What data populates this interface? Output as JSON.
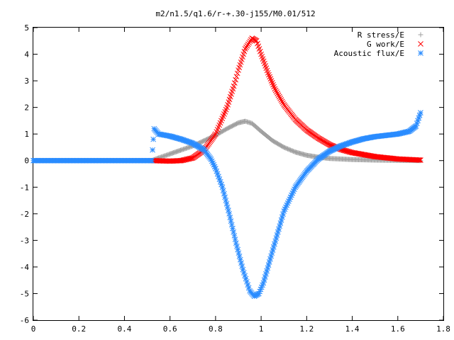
{
  "chart_data": {
    "type": "scatter",
    "title": "m2/n1.5/q1.6/r-+.30-j155/M0.01/512",
    "xlabel": "",
    "ylabel": "",
    "xlim": [
      0,
      1.8
    ],
    "ylim": [
      -6,
      5
    ],
    "x_ticks": [
      "0",
      "0.2",
      "0.4",
      "0.6",
      "0.8",
      "1",
      "1.2",
      "1.4",
      "1.6",
      "1.8"
    ],
    "x_tick_values": [
      0,
      0.2,
      0.4,
      0.6,
      0.8,
      1.0,
      1.2,
      1.4,
      1.6,
      1.8
    ],
    "y_ticks": [
      "-6",
      "-5",
      "-4",
      "-3",
      "-2",
      "-1",
      "0",
      "1",
      "2",
      "3",
      "4",
      "5"
    ],
    "y_tick_values": [
      -6,
      -5,
      -4,
      -3,
      -2,
      -1,
      0,
      1,
      2,
      3,
      4,
      5
    ],
    "grid": false,
    "legend_position": "top-right",
    "series": [
      {
        "name": "R stress/E",
        "marker": "plus",
        "color": "#a0a0a0",
        "x": [
          0.52,
          0.55,
          0.6,
          0.65,
          0.7,
          0.75,
          0.8,
          0.85,
          0.9,
          0.93,
          0.96,
          1.0,
          1.05,
          1.1,
          1.15,
          1.2,
          1.25,
          1.3,
          1.4,
          1.5,
          1.6,
          1.7
        ],
        "y": [
          0.0,
          0.1,
          0.25,
          0.4,
          0.55,
          0.75,
          0.95,
          1.2,
          1.42,
          1.48,
          1.4,
          1.1,
          0.75,
          0.5,
          0.32,
          0.2,
          0.13,
          0.08,
          0.04,
          0.02,
          0.01,
          0.0
        ]
      },
      {
        "name": "G work/E",
        "marker": "cross",
        "color": "#ff0000",
        "x": [
          0.52,
          0.6,
          0.65,
          0.7,
          0.75,
          0.8,
          0.85,
          0.88,
          0.9,
          0.93,
          0.96,
          0.98,
          1.0,
          1.03,
          1.06,
          1.1,
          1.15,
          1.2,
          1.25,
          1.3,
          1.35,
          1.4,
          1.5,
          1.6,
          1.7
        ],
        "y": [
          0.0,
          -0.02,
          0.0,
          0.1,
          0.4,
          1.0,
          2.0,
          2.8,
          3.4,
          4.2,
          4.6,
          4.5,
          4.0,
          3.3,
          2.7,
          2.1,
          1.55,
          1.15,
          0.85,
          0.6,
          0.42,
          0.3,
          0.15,
          0.06,
          0.02
        ]
      },
      {
        "name": "Acoustic flux/E",
        "marker": "star",
        "color": "#2a8cff",
        "x": [
          0.0,
          0.1,
          0.2,
          0.3,
          0.4,
          0.5,
          0.52,
          0.53,
          0.55,
          0.6,
          0.65,
          0.7,
          0.75,
          0.78,
          0.8,
          0.83,
          0.86,
          0.89,
          0.92,
          0.95,
          0.97,
          0.99,
          1.01,
          1.04,
          1.07,
          1.1,
          1.15,
          1.2,
          1.25,
          1.3,
          1.35,
          1.4,
          1.45,
          1.5,
          1.55,
          1.6,
          1.65,
          1.68,
          1.7
        ],
        "y": [
          0.0,
          0.0,
          0.0,
          0.0,
          0.0,
          0.0,
          0.0,
          1.2,
          1.0,
          0.92,
          0.8,
          0.65,
          0.4,
          0.05,
          -0.3,
          -1.0,
          -2.0,
          -3.1,
          -4.1,
          -4.9,
          -5.1,
          -5.0,
          -4.6,
          -3.7,
          -2.8,
          -1.9,
          -1.0,
          -0.4,
          0.05,
          0.35,
          0.55,
          0.7,
          0.82,
          0.9,
          0.95,
          1.0,
          1.1,
          1.3,
          1.8
        ]
      }
    ]
  }
}
